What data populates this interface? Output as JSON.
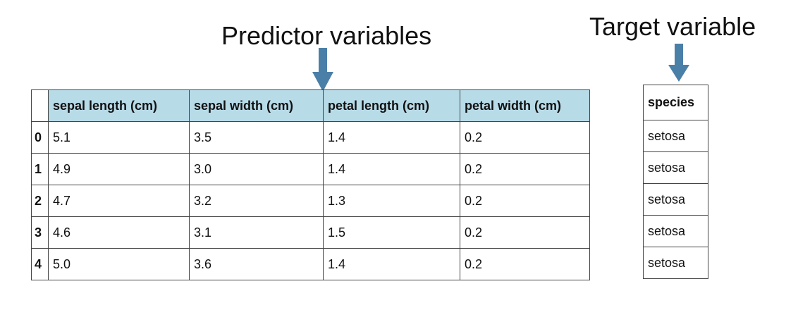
{
  "callouts": {
    "predictor": "Predictor variables",
    "target": "Target variable"
  },
  "colors": {
    "arrow": "#4a7fa8",
    "header_highlight": "#b8dbe8"
  },
  "features_table": {
    "columns": [
      "sepal length (cm)",
      "sepal width (cm)",
      "petal length (cm)",
      "petal width (cm)"
    ],
    "rows": [
      {
        "index": "0",
        "values": [
          "5.1",
          "3.5",
          "1.4",
          "0.2"
        ]
      },
      {
        "index": "1",
        "values": [
          "4.9",
          "3.0",
          "1.4",
          "0.2"
        ]
      },
      {
        "index": "2",
        "values": [
          "4.7",
          "3.2",
          "1.3",
          "0.2"
        ]
      },
      {
        "index": "3",
        "values": [
          "4.6",
          "3.1",
          "1.5",
          "0.2"
        ]
      },
      {
        "index": "4",
        "values": [
          "5.0",
          "3.6",
          "1.4",
          "0.2"
        ]
      }
    ]
  },
  "target_table": {
    "column": "species",
    "values": [
      "setosa",
      "setosa",
      "setosa",
      "setosa",
      "setosa"
    ]
  }
}
